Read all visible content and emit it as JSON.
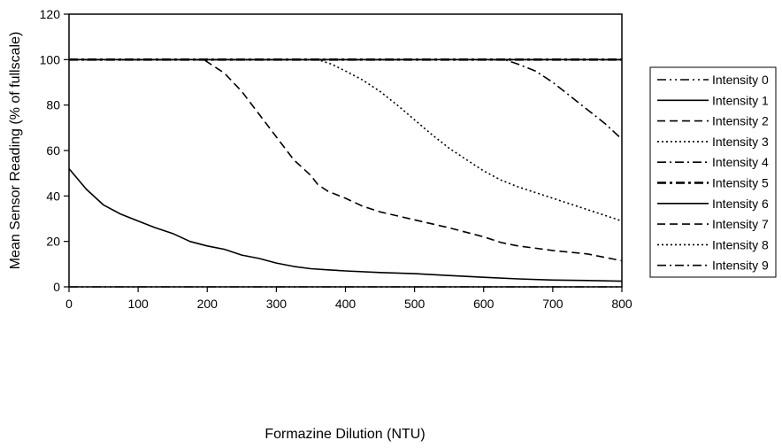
{
  "chart_data": {
    "type": "line",
    "title": "",
    "xlabel": "Formazine Dilution (NTU)",
    "ylabel": "Mean Sensor Reading (% of fullscale)",
    "xlim": [
      0,
      800
    ],
    "ylim": [
      0,
      120
    ],
    "x_ticks": [
      "0",
      "100",
      "200",
      "300",
      "400",
      "500",
      "600",
      "700",
      "800"
    ],
    "y_ticks": [
      "0",
      "20",
      "40",
      "60",
      "80",
      "100",
      "120"
    ],
    "grid": false,
    "legend_position": "right",
    "series": [
      {
        "name": "Intensity 0",
        "dash": "dash-dot-dot",
        "color": "#000000",
        "x": [
          0,
          800
        ],
        "y": [
          0,
          0
        ]
      },
      {
        "name": "Intensity 1",
        "dash": "solid",
        "color": "#000000",
        "x": [
          0,
          25,
          50,
          75,
          100,
          125,
          150,
          175,
          200,
          225,
          250,
          275,
          300,
          325,
          350,
          375,
          400,
          450,
          500,
          550,
          600,
          650,
          700,
          750,
          800
        ],
        "y": [
          52,
          43,
          36,
          32,
          29,
          26,
          23.5,
          20,
          18,
          16.5,
          14,
          12.5,
          10.5,
          9,
          8,
          7.5,
          7,
          6.3,
          5.8,
          5,
          4.2,
          3.5,
          3,
          2.8,
          2.5
        ]
      },
      {
        "name": "Intensity 2",
        "dash": "dash",
        "color": "#000000",
        "x": [
          0,
          195,
          225,
          250,
          275,
          300,
          325,
          350,
          360,
          375,
          400,
          425,
          450,
          500,
          550,
          600,
          625,
          650,
          700,
          750,
          800
        ],
        "y": [
          100,
          100,
          94,
          86,
          76,
          66,
          56,
          49,
          45,
          42,
          39,
          35.5,
          33,
          29.5,
          26,
          22,
          19.5,
          18,
          16,
          14.5,
          11.5
        ]
      },
      {
        "name": "Intensity 3",
        "dash": "dot",
        "color": "#000000",
        "x": [
          0,
          340,
          360,
          380,
          400,
          425,
          450,
          475,
          500,
          525,
          550,
          575,
          600,
          625,
          650,
          700,
          750,
          800
        ],
        "y": [
          100,
          100,
          100,
          98,
          95,
          91,
          86,
          80,
          73.5,
          67,
          61,
          56,
          51,
          47,
          44,
          39,
          34,
          29
        ]
      },
      {
        "name": "Intensity 4",
        "dash": "dash-dot",
        "color": "#000000",
        "x": [
          0,
          630,
          650,
          675,
          700,
          725,
          750,
          775,
          800
        ],
        "y": [
          100,
          100,
          98,
          95,
          90,
          84,
          78,
          72,
          65
        ]
      },
      {
        "name": "Intensity 5",
        "dash": "dash-dot-heavy",
        "color": "#000000",
        "x": [
          0,
          800
        ],
        "y": [
          100,
          100
        ]
      },
      {
        "name": "Intensity 6",
        "dash": "solid",
        "color": "#000000",
        "x": [
          0,
          800
        ],
        "y": [
          100,
          100
        ]
      },
      {
        "name": "Intensity 7",
        "dash": "dash",
        "color": "#000000",
        "x": [
          0,
          800
        ],
        "y": [
          100,
          100
        ]
      },
      {
        "name": "Intensity 8",
        "dash": "dot",
        "color": "#000000",
        "x": [
          0,
          800
        ],
        "y": [
          100,
          100
        ]
      },
      {
        "name": "Intensity 9",
        "dash": "dash-dot",
        "color": "#000000",
        "x": [
          0,
          800
        ],
        "y": [
          100,
          100
        ]
      }
    ]
  }
}
